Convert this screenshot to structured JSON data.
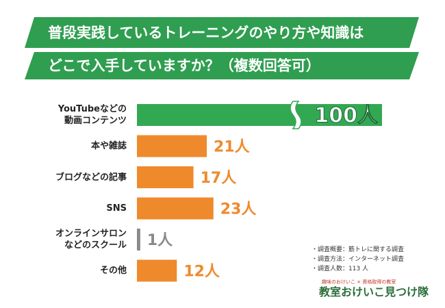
{
  "chart_data": {
    "type": "bar",
    "title": "普段実践しているトレーニングのやり方や知識は",
    "subtitle": "どこで入手していますか？（複数回答可）",
    "categories": [
      "YouTubeなどの\n動画コンテンツ",
      "本や雑誌",
      "ブログなどの記事",
      "SNS",
      "オンラインサロン\nなどのスクール",
      "その他"
    ],
    "values": [
      100,
      21,
      17,
      23,
      1,
      12
    ],
    "value_labels": [
      "100人",
      "21人",
      "17人",
      "23人",
      "1人",
      "12人"
    ],
    "colors": [
      "#33a853",
      "#ef8a2c",
      "#ef8a2c",
      "#ef8a2c",
      "#8a8a8a",
      "#ef8a2c"
    ],
    "notes": [
      "・調査概要：筋トレに関する調査",
      "・調査方法：インターネット調査",
      "・調査人数：113 人"
    ],
    "logo": {
      "tagline": "趣味のおけいこ × 資格取得の教室",
      "name": "教室おけいこ見つけ隊"
    }
  }
}
